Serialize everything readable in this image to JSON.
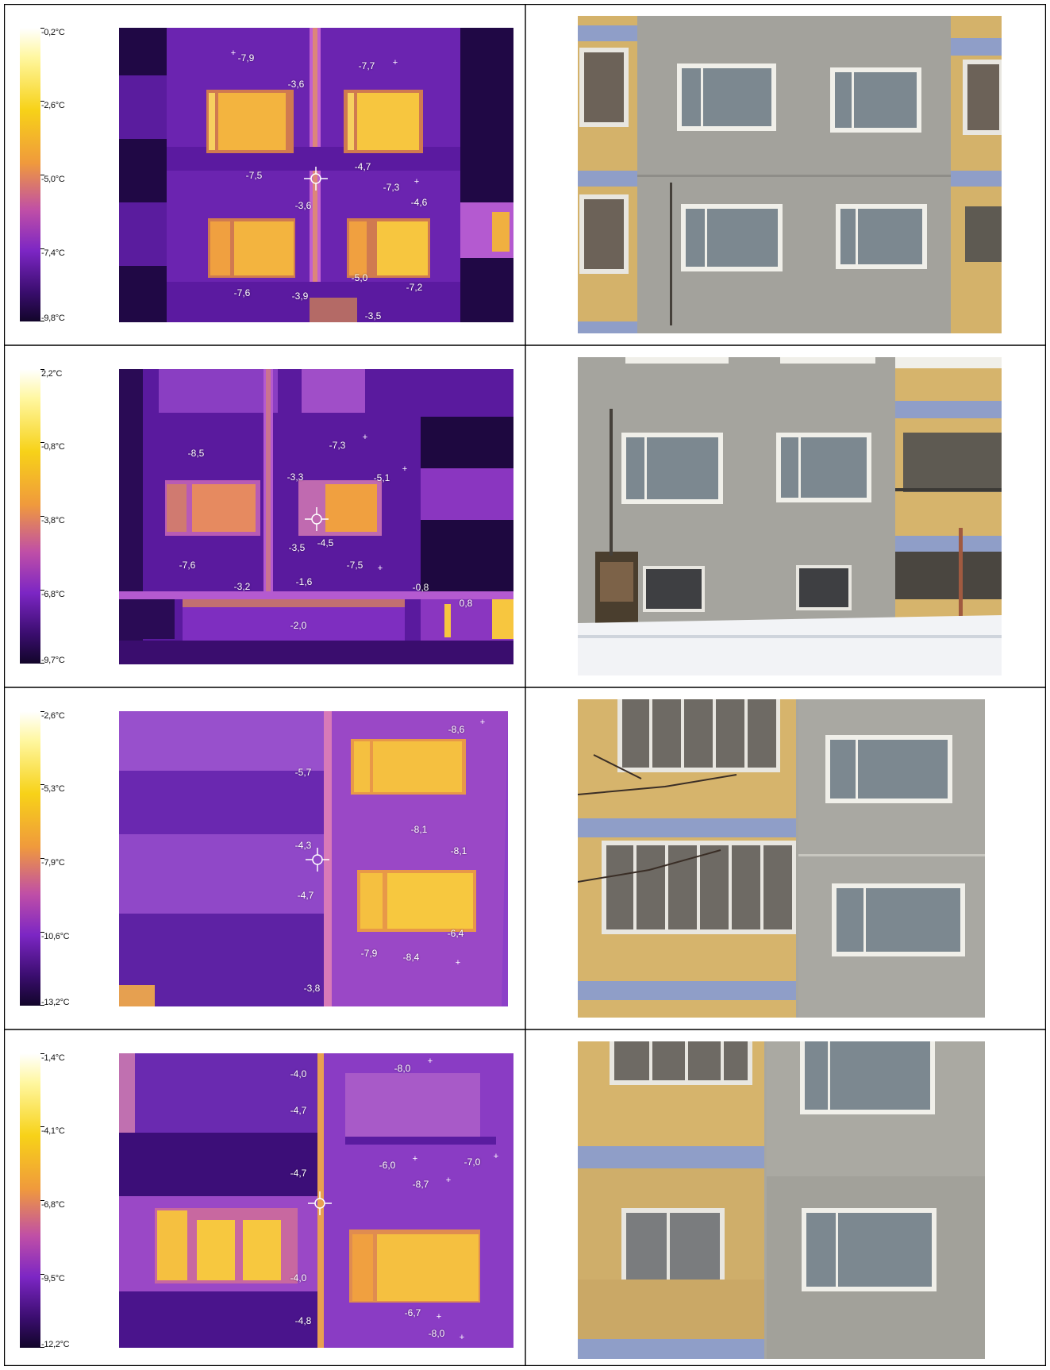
{
  "rows": [
    {
      "scale": [
        "-0,2°C",
        "-2,6°C",
        "-5,0°C",
        "-7,4°C",
        "-9,8°C"
      ],
      "values": [
        "-7,9",
        "-7,7",
        "-3,6",
        "-7,5",
        "-4,7",
        "-7,3",
        "-3,6",
        "-4,6",
        "-7,6",
        "-3,9",
        "-5,0",
        "-7,2",
        "-3,5"
      ]
    },
    {
      "scale": [
        "2,2°C",
        "-0,8°C",
        "-3,8°C",
        "-6,8°C",
        "-9,7°C"
      ],
      "values": [
        "-8,5",
        "-7,3",
        "-3,3",
        "-5,1",
        "-3,5",
        "-4,5",
        "-7,5",
        "-7,6",
        "-3,2",
        "-1,6",
        "-0,8",
        "0,8",
        "-2,0"
      ]
    },
    {
      "scale": [
        "-2,6°C",
        "-5,3°C",
        "-7,9°C",
        "-10,6°C",
        "-13,2°C"
      ],
      "values": [
        "-8,6",
        "-5,7",
        "-8,1",
        "-4,3",
        "-8,1",
        "-4,7",
        "-6,4",
        "-7,9",
        "-8,4",
        "-3,8"
      ]
    },
    {
      "scale": [
        "-1,4°C",
        "-4,1°C",
        "-6,8°C",
        "-9,5°C",
        "-12,2°C"
      ],
      "values": [
        "-4,0",
        "-8,0",
        "-4,7",
        "-4,7",
        "-6,0",
        "-7,0",
        "-8,7",
        "-4,0",
        "-6,7",
        "-4,8",
        "-8,0"
      ]
    }
  ]
}
